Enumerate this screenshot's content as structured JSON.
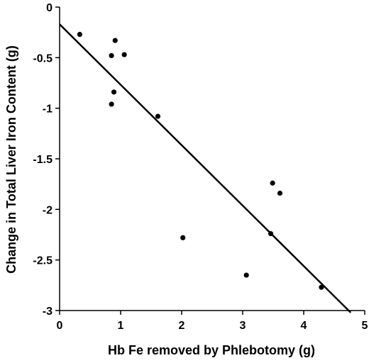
{
  "chart_data": {
    "type": "scatter",
    "title": "",
    "xlabel": "Hb Fe removed by Phlebotomy (g)",
    "ylabel": "Change in Total Liver Iron Content (g)",
    "xlim": [
      0,
      5
    ],
    "ylim": [
      -3,
      0
    ],
    "x_ticks": [
      0,
      1,
      2,
      3,
      4,
      5
    ],
    "y_ticks": [
      0,
      -0.5,
      -1,
      -1.5,
      -2,
      -2.5,
      -3
    ],
    "x_tick_labels": [
      "0",
      "1",
      "2",
      "3",
      "4",
      "5"
    ],
    "y_tick_labels": [
      "0",
      "-0.5",
      "-1",
      "-1.5",
      "-2",
      "-2.5",
      "-3"
    ],
    "grid": false,
    "legend": false,
    "points": [
      {
        "x": 0.33,
        "y": -0.27
      },
      {
        "x": 0.91,
        "y": -0.33
      },
      {
        "x": 0.85,
        "y": -0.48
      },
      {
        "x": 1.06,
        "y": -0.47
      },
      {
        "x": 0.89,
        "y": -0.84
      },
      {
        "x": 0.85,
        "y": -0.96
      },
      {
        "x": 1.61,
        "y": -1.08
      },
      {
        "x": 2.02,
        "y": -2.28
      },
      {
        "x": 3.06,
        "y": -2.65
      },
      {
        "x": 3.49,
        "y": -1.74
      },
      {
        "x": 3.61,
        "y": -1.84
      },
      {
        "x": 3.46,
        "y": -2.24
      },
      {
        "x": 4.29,
        "y": -2.77
      }
    ],
    "fit_line": {
      "x": [
        0,
        4.77
      ],
      "y": [
        -0.17,
        -3.02
      ]
    },
    "colors": {
      "marker": "#000000",
      "line": "#000000",
      "axis": "#000000"
    }
  }
}
